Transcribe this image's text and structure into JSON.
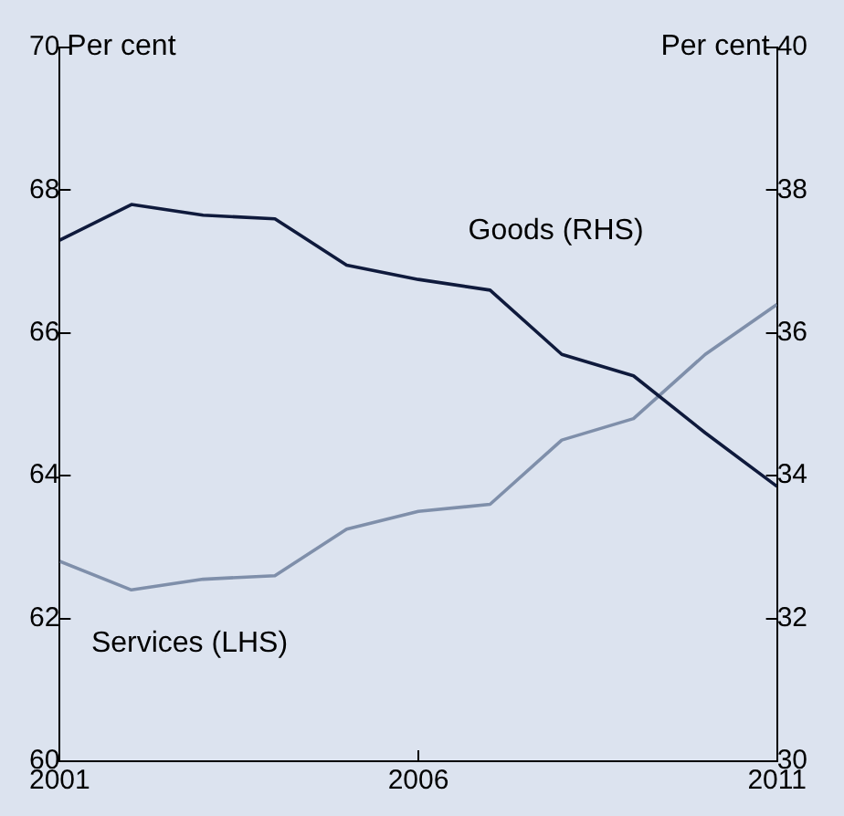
{
  "chart_data": {
    "type": "line",
    "ylabel": "Per cent",
    "y2label": "Per cent",
    "x": [
      2001,
      2002,
      2003,
      2004,
      2005,
      2006,
      2007,
      2008,
      2009,
      2010,
      2011
    ],
    "xlim": [
      2001,
      2011
    ],
    "xticks": [
      2001,
      2006,
      2011
    ],
    "ylim": [
      60,
      70
    ],
    "yticks": [
      60,
      62,
      64,
      66,
      68,
      70
    ],
    "y2lim": [
      30,
      40
    ],
    "y2ticks": [
      30,
      32,
      34,
      36,
      38,
      40
    ],
    "series": [
      {
        "name": "Goods (RHS)",
        "color": "#0f1a3c",
        "axis": "y2",
        "values": [
          37.3,
          37.8,
          37.65,
          37.6,
          36.95,
          36.75,
          36.6,
          35.7,
          35.4,
          34.6,
          33.85
        ]
      },
      {
        "name": "Services (LHS)",
        "color": "#7f8faa",
        "values": [
          62.8,
          62.4,
          62.55,
          62.6,
          63.25,
          63.5,
          63.6,
          64.5,
          64.8,
          65.7,
          66.4
        ]
      }
    ],
    "grid": false,
    "legend": false,
    "marker": "none",
    "line_style": "solid"
  }
}
